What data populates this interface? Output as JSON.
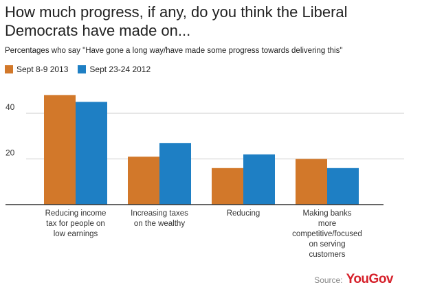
{
  "chart_data": {
    "type": "bar",
    "title": "How much progress, if any, do you think the Liberal Democrats have made on...",
    "subtitle": "Percentages who say \"Have gone a long way/have made some progress towards delivering this\"",
    "categories": [
      [
        "Reducing income",
        "tax for people on",
        "low earnings"
      ],
      [
        "Increasing taxes",
        "on the wealthy"
      ],
      [
        "Reducing"
      ],
      [
        "Making banks",
        "more",
        "competitive/focused",
        "on serving",
        "customers"
      ]
    ],
    "series": [
      {
        "name": "Sept 8-9 2013",
        "color": "#d2782a",
        "values": [
          48,
          21,
          16,
          20
        ]
      },
      {
        "name": "Sept 23-24 2012",
        "color": "#1e7fc4",
        "values": [
          45,
          27,
          22,
          16
        ]
      }
    ],
    "yticks": [
      "20",
      "40"
    ],
    "ytick_values": [
      20,
      40
    ],
    "ylim": [
      0,
      60
    ],
    "grid": true,
    "legend_position": "top-left"
  },
  "source": {
    "label": "Source:",
    "brand": "YouGov"
  }
}
